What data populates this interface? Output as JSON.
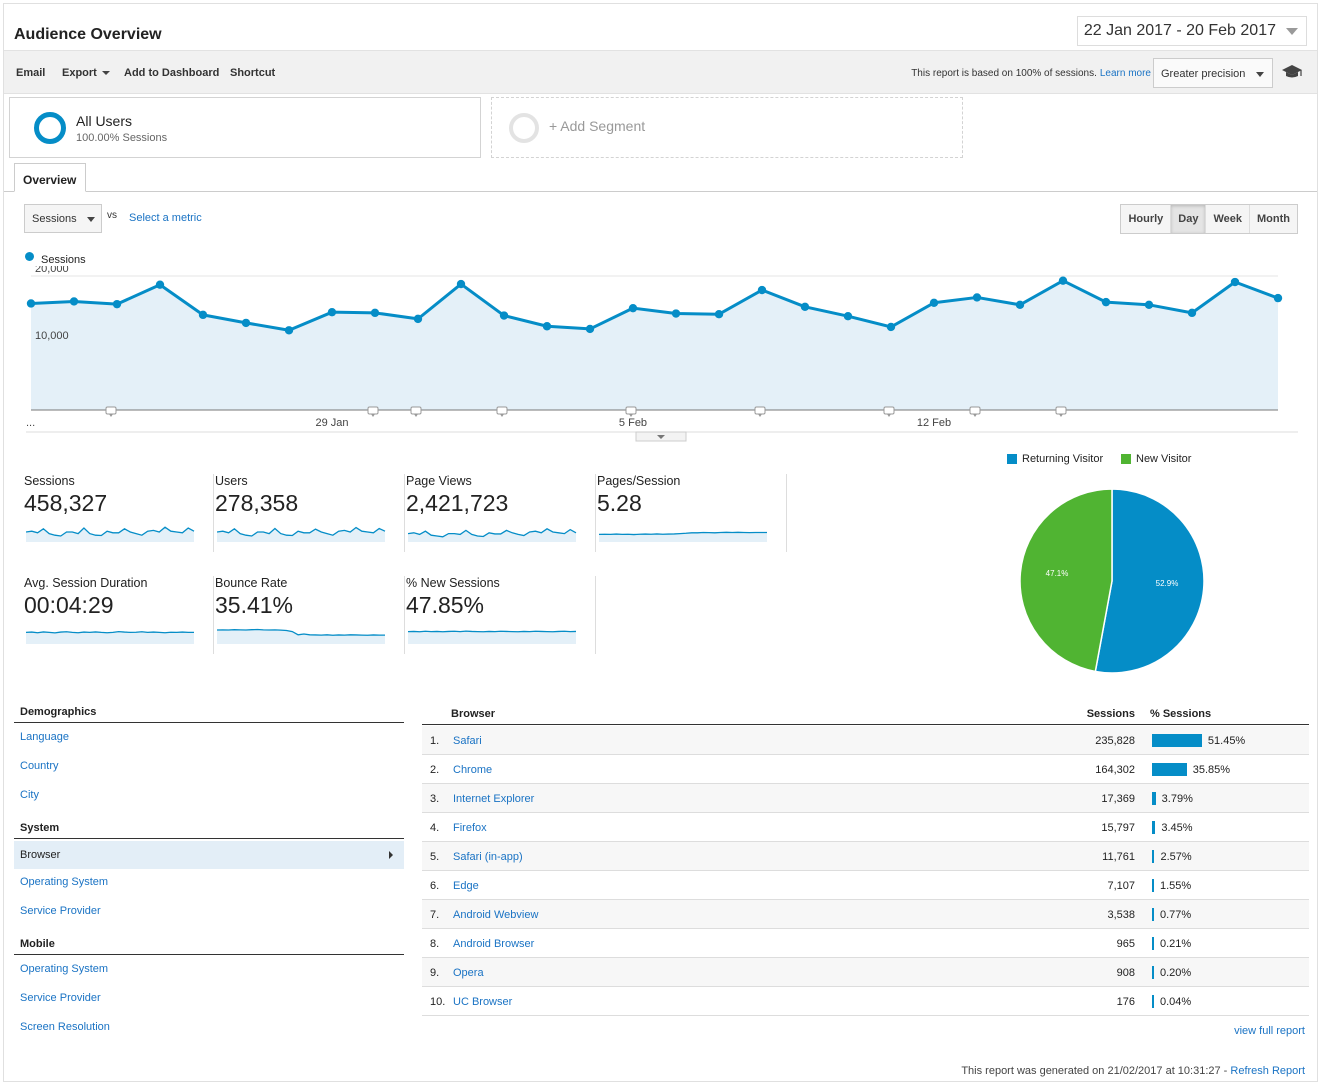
{
  "header": {
    "title": "Audience Overview",
    "date_range": "22 Jan 2017 - 20 Feb 2017"
  },
  "toolbar": {
    "email": "Email",
    "export": "Export",
    "add_to_dashboard": "Add to Dashboard",
    "shortcut": "Shortcut",
    "report_note": "This report is based on 100% of sessions.",
    "learn_more": "Learn more",
    "precision": "Greater precision"
  },
  "segments": {
    "all_users": "All Users",
    "all_users_sub": "100.00% Sessions",
    "add_segment": "+ Add Segment"
  },
  "tabs": {
    "overview": "Overview"
  },
  "chart_controls": {
    "metric": "Sessions",
    "vs": "vs",
    "select_metric": "Select a metric",
    "granularity": [
      "Hourly",
      "Day",
      "Week",
      "Month"
    ],
    "active_granularity": "Day"
  },
  "chart_data": [
    {
      "type": "area",
      "series": [
        {
          "name": "Sessions",
          "values": [
            15900,
            16200,
            15800,
            18700,
            14200,
            13000,
            11900,
            14600,
            14500,
            13600,
            18800,
            14100,
            12500,
            12100,
            15200,
            14400,
            14300,
            17900,
            15400,
            14000,
            12400,
            16000,
            16800,
            15700,
            19300,
            16100,
            15700,
            14500,
            19100,
            16700
          ]
        }
      ],
      "x": [
        "22 Jan",
        "23 Jan",
        "24 Jan",
        "25 Jan",
        "26 Jan",
        "27 Jan",
        "28 Jan",
        "29 Jan",
        "30 Jan",
        "31 Jan",
        "1 Feb",
        "2 Feb",
        "3 Feb",
        "4 Feb",
        "5 Feb",
        "6 Feb",
        "7 Feb",
        "8 Feb",
        "9 Feb",
        "10 Feb",
        "11 Feb",
        "12 Feb",
        "13 Feb",
        "14 Feb",
        "15 Feb",
        "16 Feb",
        "17 Feb",
        "18 Feb",
        "19 Feb",
        "20 Feb"
      ],
      "x_tick_labels": [
        "...",
        "29 Jan",
        "5 Feb",
        "12 Feb"
      ],
      "y_tick_labels": [
        "20,000",
        "10,000"
      ],
      "ylim": [
        0,
        20000
      ],
      "annotation_markers_on": [
        "24 Jan",
        "30 Jan",
        "31 Jan",
        "2 Feb",
        "5 Feb",
        "8 Feb",
        "11 Feb",
        "13 Feb",
        "15 Feb"
      ],
      "color": "#058dc7",
      "grid": true
    },
    {
      "type": "pie",
      "categories": [
        "Returning Visitor",
        "New Visitor"
      ],
      "values": [
        52.9,
        47.1
      ],
      "labels": [
        "52.9%",
        "47.1%"
      ],
      "colors": [
        "#058dc7",
        "#50b432"
      ],
      "legend": "top"
    }
  ],
  "scorecards": [
    {
      "label": "Sessions",
      "value": "458,327",
      "spark": [
        0.5,
        0.55,
        0.45,
        0.7,
        0.4,
        0.3,
        0.25,
        0.5,
        0.5,
        0.4,
        0.75,
        0.4,
        0.3,
        0.28,
        0.55,
        0.45,
        0.45,
        0.7,
        0.5,
        0.4,
        0.3,
        0.55,
        0.6,
        0.5,
        0.8,
        0.55,
        0.5,
        0.45,
        0.75,
        0.55
      ]
    },
    {
      "label": "Users",
      "value": "278,358",
      "spark": [
        0.5,
        0.55,
        0.45,
        0.7,
        0.4,
        0.3,
        0.25,
        0.5,
        0.5,
        0.4,
        0.72,
        0.4,
        0.3,
        0.28,
        0.55,
        0.45,
        0.45,
        0.68,
        0.5,
        0.4,
        0.3,
        0.55,
        0.6,
        0.5,
        0.78,
        0.55,
        0.5,
        0.45,
        0.72,
        0.55
      ]
    },
    {
      "label": "Page Views",
      "value": "2,421,723",
      "spark": [
        0.4,
        0.45,
        0.35,
        0.55,
        0.3,
        0.25,
        0.2,
        0.4,
        0.4,
        0.35,
        0.6,
        0.35,
        0.25,
        0.22,
        0.45,
        0.38,
        0.38,
        0.6,
        0.45,
        0.35,
        0.28,
        0.5,
        0.55,
        0.45,
        0.7,
        0.5,
        0.45,
        0.4,
        0.65,
        0.45
      ]
    },
    {
      "label": "Pages/Session",
      "value": "5.28",
      "spark": [
        0.35,
        0.36,
        0.35,
        0.37,
        0.35,
        0.36,
        0.34,
        0.36,
        0.37,
        0.36,
        0.38,
        0.36,
        0.37,
        0.38,
        0.4,
        0.42,
        0.45,
        0.45,
        0.47,
        0.46,
        0.45,
        0.47,
        0.48,
        0.47,
        0.48,
        0.47,
        0.46,
        0.47,
        0.47,
        0.47
      ]
    },
    {
      "label": "Avg. Session Duration",
      "value": "00:04:29",
      "spark": [
        0.6,
        0.62,
        0.58,
        0.63,
        0.6,
        0.57,
        0.62,
        0.64,
        0.6,
        0.58,
        0.62,
        0.6,
        0.63,
        0.6,
        0.58,
        0.6,
        0.65,
        0.62,
        0.6,
        0.61,
        0.64,
        0.6,
        0.62,
        0.6,
        0.58,
        0.61,
        0.6,
        0.62,
        0.6,
        0.6
      ]
    },
    {
      "label": "Bounce Rate",
      "value": "35.41%",
      "spark": [
        0.75,
        0.76,
        0.75,
        0.77,
        0.76,
        0.75,
        0.77,
        0.78,
        0.76,
        0.75,
        0.76,
        0.74,
        0.72,
        0.65,
        0.45,
        0.5,
        0.45,
        0.44,
        0.43,
        0.45,
        0.42,
        0.44,
        0.43,
        0.45,
        0.44,
        0.43,
        0.42,
        0.44,
        0.43,
        0.43
      ]
    },
    {
      "label": "% New Sessions",
      "value": "47.85%",
      "spark": [
        0.65,
        0.66,
        0.64,
        0.67,
        0.65,
        0.66,
        0.64,
        0.66,
        0.67,
        0.65,
        0.68,
        0.66,
        0.65,
        0.64,
        0.66,
        0.65,
        0.67,
        0.66,
        0.65,
        0.64,
        0.66,
        0.65,
        0.67,
        0.66,
        0.65,
        0.64,
        0.66,
        0.67,
        0.65,
        0.66
      ]
    }
  ],
  "nav": {
    "demographics": "Demographics",
    "demographics_items": [
      "Language",
      "Country",
      "City"
    ],
    "system": "System",
    "system_active": "Browser",
    "system_items": [
      "Operating System",
      "Service Provider"
    ],
    "mobile": "Mobile",
    "mobile_items": [
      "Operating System",
      "Service Provider",
      "Screen Resolution"
    ]
  },
  "browser_table": {
    "headers": {
      "browser": "Browser",
      "sessions": "Sessions",
      "pct": "% Sessions"
    },
    "rows": [
      {
        "num": "1.",
        "name": "Safari",
        "sessions": "235,828",
        "pct": "51.45%",
        "fraction": 0.5145
      },
      {
        "num": "2.",
        "name": "Chrome",
        "sessions": "164,302",
        "pct": "35.85%",
        "fraction": 0.3585
      },
      {
        "num": "3.",
        "name": "Internet Explorer",
        "sessions": "17,369",
        "pct": "3.79%",
        "fraction": 0.0379
      },
      {
        "num": "4.",
        "name": "Firefox",
        "sessions": "15,797",
        "pct": "3.45%",
        "fraction": 0.0345
      },
      {
        "num": "5.",
        "name": "Safari (in-app)",
        "sessions": "11,761",
        "pct": "2.57%",
        "fraction": 0.0257
      },
      {
        "num": "6.",
        "name": "Edge",
        "sessions": "7,107",
        "pct": "1.55%",
        "fraction": 0.0155
      },
      {
        "num": "7.",
        "name": "Android Webview",
        "sessions": "3,538",
        "pct": "0.77%",
        "fraction": 0.0077
      },
      {
        "num": "8.",
        "name": "Android Browser",
        "sessions": "965",
        "pct": "0.21%",
        "fraction": 0.0021
      },
      {
        "num": "9.",
        "name": "Opera",
        "sessions": "908",
        "pct": "0.20%",
        "fraction": 0.002
      },
      {
        "num": "10.",
        "name": "UC Browser",
        "sessions": "176",
        "pct": "0.04%",
        "fraction": 0.0004
      }
    ],
    "view_full": "view full report"
  },
  "footer": {
    "generated": "This report was generated on 21/02/2017 at 10:31:27 -",
    "refresh": "Refresh Report"
  }
}
